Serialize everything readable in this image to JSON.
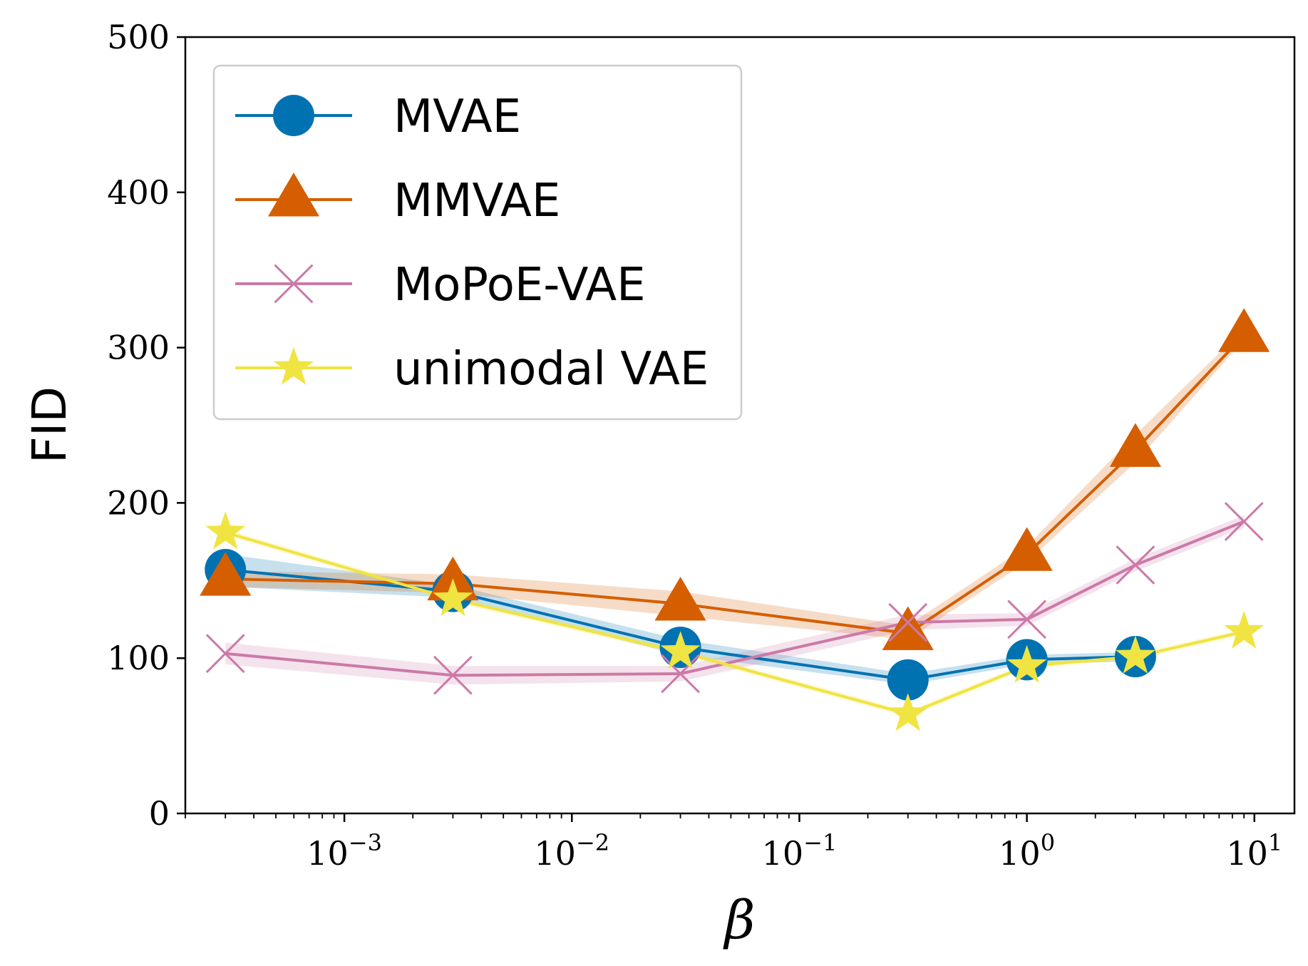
{
  "chart_data": {
    "type": "line",
    "title": "",
    "xlabel": "β",
    "ylabel": "FID",
    "xscale": "log",
    "xlim": [
      0.0002,
      15
    ],
    "ylim": [
      0,
      500
    ],
    "grid": false,
    "legend_position": "top-left",
    "y_ticks": [
      0,
      100,
      200,
      300,
      400,
      500
    ],
    "x_ticks": [
      {
        "value": 0.001,
        "base": "10",
        "exp": "−3"
      },
      {
        "value": 0.01,
        "base": "10",
        "exp": "−2"
      },
      {
        "value": 0.1,
        "base": "10",
        "exp": "−1"
      },
      {
        "value": 1,
        "base": "10",
        "exp": "0"
      },
      {
        "value": 10,
        "base": "10",
        "exp": "1"
      }
    ],
    "x": [
      0.0003,
      0.003,
      0.03,
      0.3,
      1,
      3,
      9
    ],
    "series": [
      {
        "name": "MVAE",
        "color": "#0072b2",
        "marker": "circle",
        "x": [
          0.0003,
          0.003,
          0.03,
          0.3,
          1,
          3
        ],
        "values": [
          157,
          143,
          107,
          86,
          99,
          101
        ],
        "lower": [
          146,
          139,
          102,
          83,
          96,
          98
        ],
        "upper": [
          167,
          147,
          112,
          90,
          102,
          104
        ]
      },
      {
        "name": "MMVAE",
        "color": "#d55e00",
        "marker": "triangle",
        "x": [
          0.0003,
          0.003,
          0.03,
          0.3,
          1,
          3,
          9
        ],
        "values": [
          151,
          148,
          135,
          116,
          167,
          234,
          308
        ],
        "lower": [
          146,
          142,
          127,
          112,
          162,
          226,
          305
        ],
        "upper": [
          156,
          154,
          143,
          121,
          172,
          244,
          312
        ]
      },
      {
        "name": "MoPoE-VAE",
        "color": "#cc79a7",
        "marker": "x",
        "x": [
          0.0003,
          0.003,
          0.03,
          0.3,
          1,
          3,
          9
        ],
        "values": [
          103,
          89,
          90,
          123,
          125,
          160,
          188
        ],
        "lower": [
          96,
          83,
          85,
          118,
          121,
          156,
          184
        ],
        "upper": [
          110,
          95,
          95,
          128,
          129,
          164,
          192
        ]
      },
      {
        "name": "unimodal VAE",
        "color": "#f0e442",
        "marker": "star",
        "x": [
          0.0003,
          0.003,
          0.03,
          0.3,
          1,
          3,
          9
        ],
        "values": [
          181,
          138,
          104,
          64,
          95,
          101,
          117
        ],
        "lower": [
          179,
          136,
          102,
          62,
          93,
          99,
          115
        ],
        "upper": [
          183,
          140,
          106,
          66,
          97,
          103,
          119
        ]
      }
    ]
  }
}
